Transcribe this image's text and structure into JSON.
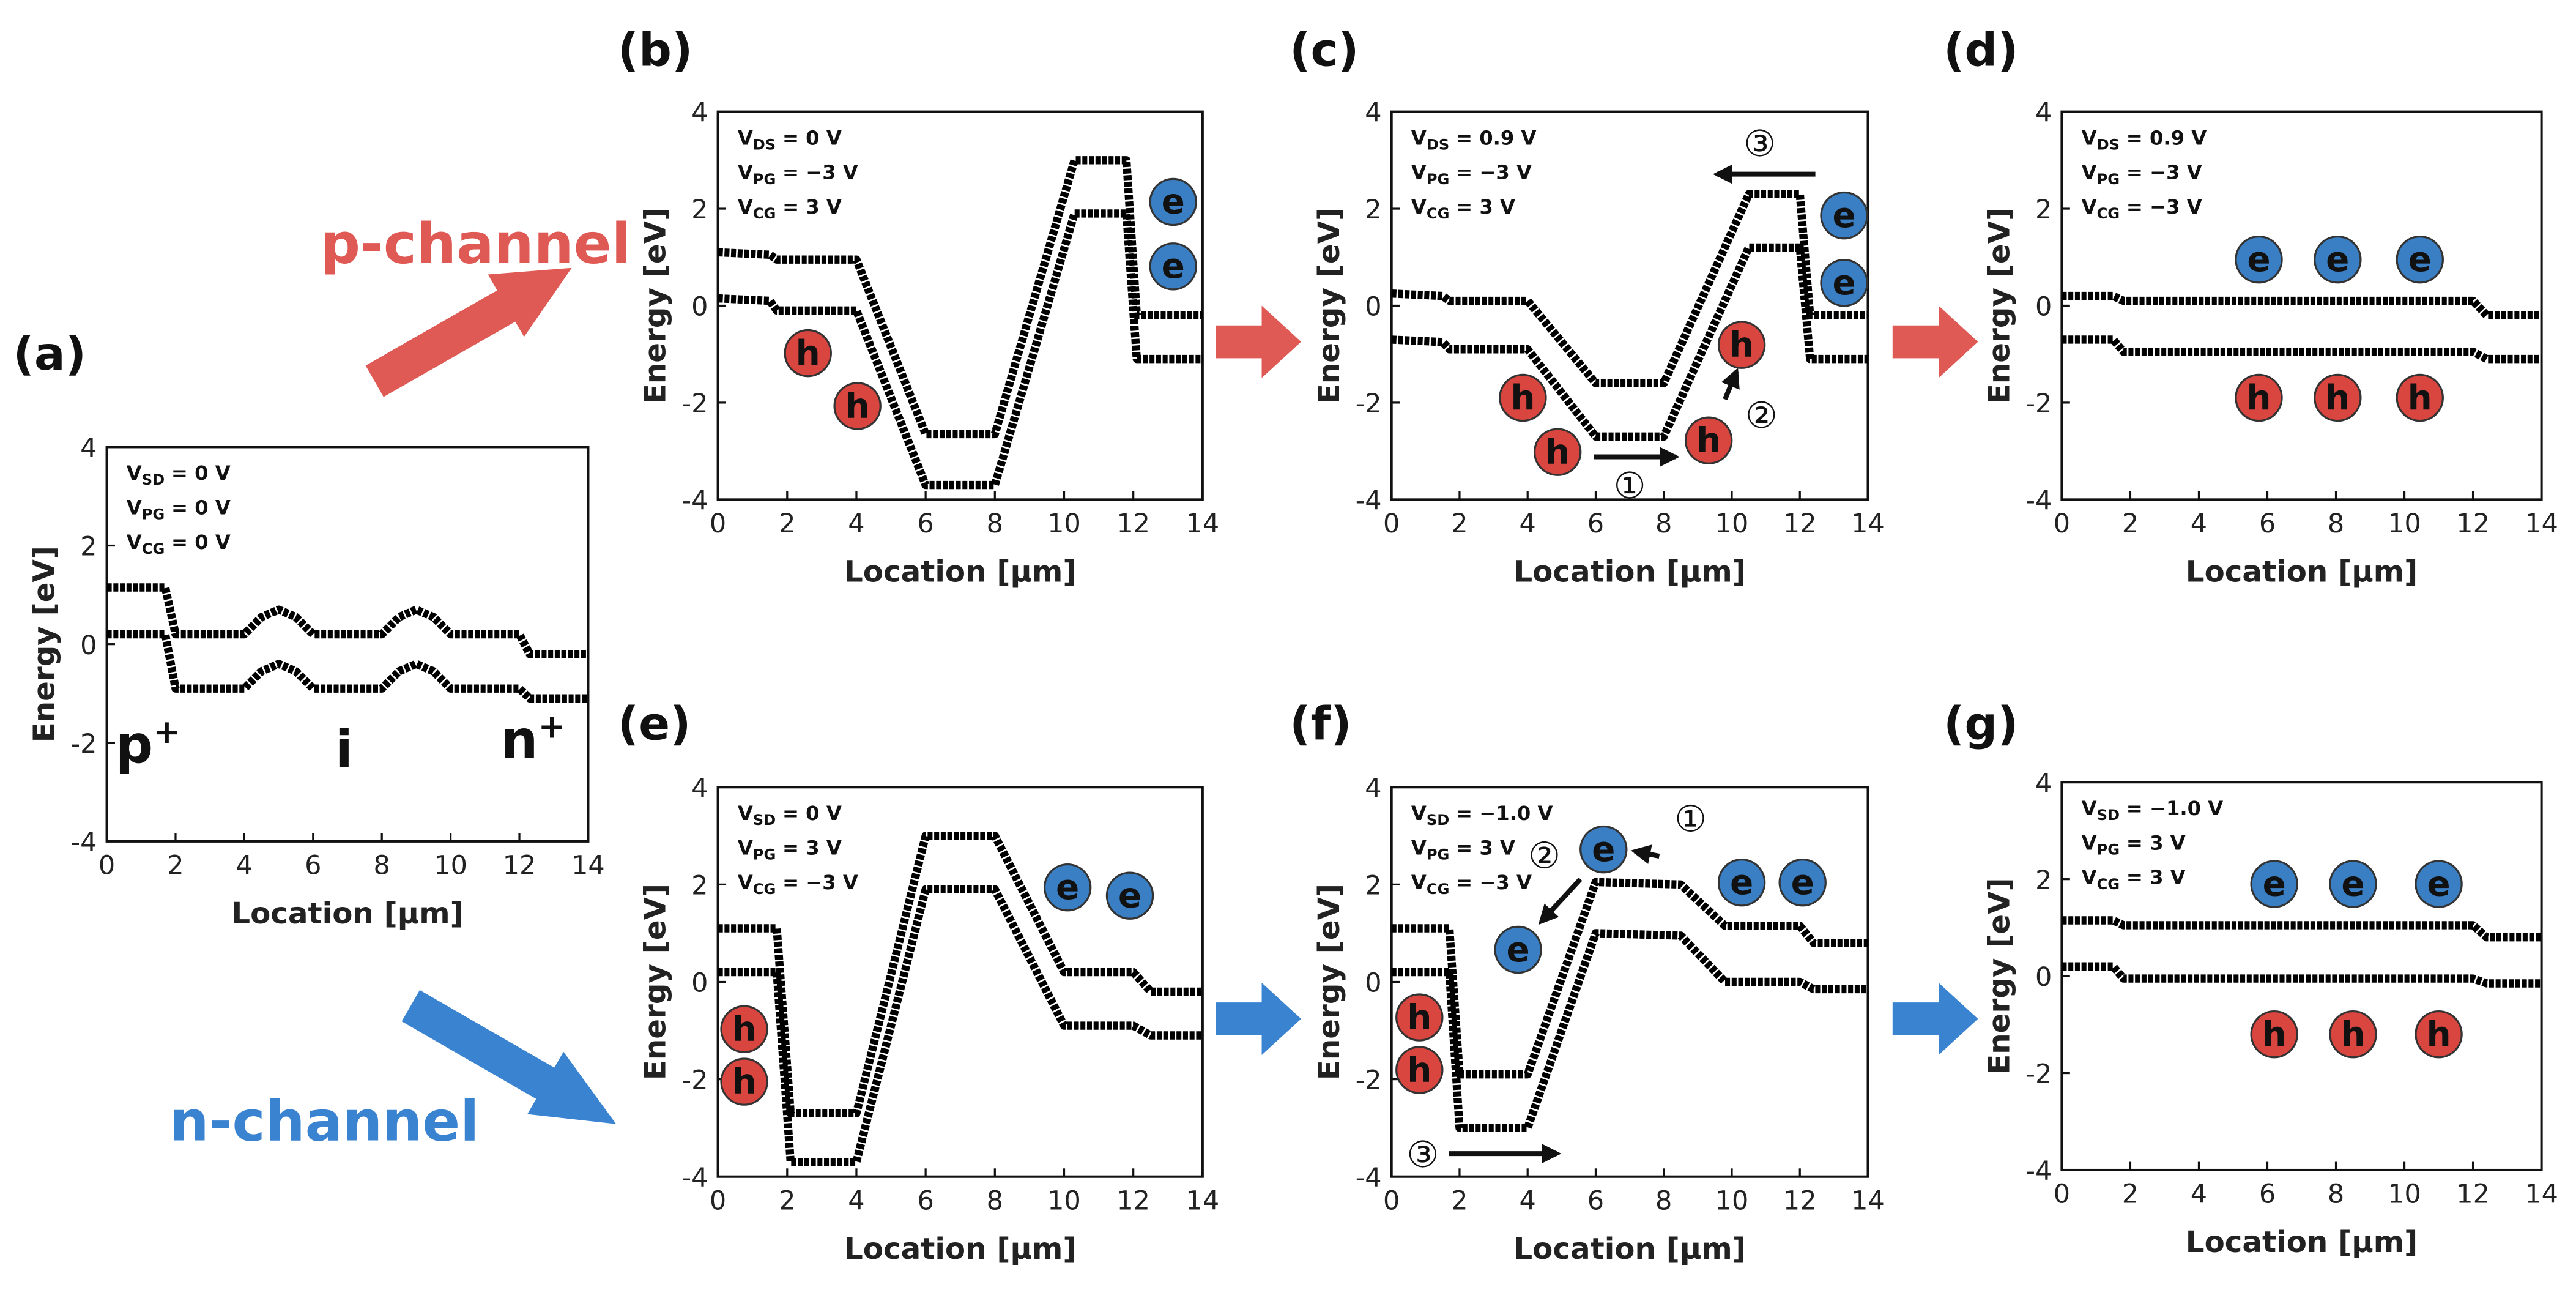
{
  "figure": {
    "p_channel": "p-channel",
    "n_channel": "n-channel"
  },
  "chart_data": [
    {
      "type": "line",
      "panel": "(a)",
      "xlabel": "Location [μm]",
      "ylabel": "Energy [eV]",
      "xlim": [
        0,
        14
      ],
      "ylim": [
        -4,
        4
      ],
      "xticks": [
        0,
        2,
        4,
        6,
        8,
        10,
        12,
        14
      ],
      "yticks": [
        -4,
        -2,
        0,
        2,
        4
      ],
      "x": [
        0,
        1.7,
        2,
        4,
        4.5,
        5,
        5.5,
        6,
        8,
        8.5,
        9,
        9.5,
        10,
        12,
        12.3,
        14
      ],
      "series": [
        {
          "color": "#000000",
          "values": [
            1.15,
            1.15,
            0.2,
            0.2,
            0.55,
            0.7,
            0.55,
            0.2,
            0.2,
            0.55,
            0.7,
            0.55,
            0.2,
            0.2,
            -0.2,
            -0.2
          ]
        },
        {
          "color": "#000000",
          "values": [
            0.2,
            0.2,
            -0.9,
            -0.9,
            -0.55,
            -0.4,
            -0.55,
            -0.9,
            -0.9,
            -0.55,
            -0.4,
            -0.55,
            -0.9,
            -0.9,
            -1.1,
            -1.1
          ]
        }
      ],
      "conditions": [
        {
          "name": "V",
          "sub": "SD",
          "text": "= 0 V"
        },
        {
          "name": "V",
          "sub": "PG",
          "text": "= 0 V"
        },
        {
          "name": "V",
          "sub": "CG",
          "text": "= 0 V"
        }
      ],
      "particles": [],
      "markers": [],
      "regions": [
        {
          "base": "p",
          "sup": "+"
        },
        {
          "base": "i",
          "sup": null
        },
        {
          "base": "n",
          "sup": "+"
        }
      ]
    },
    {
      "type": "line",
      "panel": "(b)",
      "xlabel": "Location [μm]",
      "ylabel": "Energy [eV]",
      "xlim": [
        0,
        14
      ],
      "ylim": [
        -4,
        4
      ],
      "xticks": [
        0,
        2,
        4,
        6,
        8,
        10,
        12,
        14
      ],
      "yticks": [
        -4,
        -2,
        0,
        2,
        4
      ],
      "x": [
        0,
        1.5,
        1.7,
        4,
        6,
        8,
        10.3,
        11.8,
        12.1,
        14
      ],
      "series": [
        {
          "color": "#000000",
          "values": [
            1.1,
            1.05,
            0.95,
            0.95,
            -2.65,
            -2.65,
            3.0,
            3.0,
            -0.2,
            -0.2
          ]
        },
        {
          "color": "#000000",
          "values": [
            0.15,
            0.1,
            -0.1,
            -0.1,
            -3.7,
            -3.7,
            1.9,
            1.9,
            -1.1,
            -1.1
          ]
        }
      ],
      "conditions": [
        {
          "name": "V",
          "sub": "DS",
          "text": "= 0 V"
        },
        {
          "name": "V",
          "sub": "PG",
          "text": "= −3 V"
        },
        {
          "name": "V",
          "sub": "CG",
          "text": "= 3 V"
        }
      ],
      "particles": [
        "e",
        "e",
        "h",
        "h"
      ],
      "markers": [],
      "regions": []
    },
    {
      "type": "line",
      "panel": "(c)",
      "xlabel": "Location [μm]",
      "ylabel": "Energy [eV]",
      "xlim": [
        0,
        14
      ],
      "ylim": [
        -4,
        4
      ],
      "xticks": [
        0,
        2,
        4,
        6,
        8,
        10,
        12,
        14
      ],
      "yticks": [
        -4,
        -2,
        0,
        2,
        4
      ],
      "x": [
        0,
        1.5,
        1.7,
        4,
        6,
        8,
        10.5,
        12,
        12.3,
        14
      ],
      "series": [
        {
          "color": "#000000",
          "values": [
            0.25,
            0.2,
            0.1,
            0.1,
            -1.6,
            -1.6,
            2.3,
            2.3,
            -0.2,
            -0.2
          ]
        },
        {
          "color": "#000000",
          "values": [
            -0.7,
            -0.75,
            -0.9,
            -0.9,
            -2.7,
            -2.7,
            1.2,
            1.2,
            -1.1,
            -1.1
          ]
        }
      ],
      "conditions": [
        {
          "name": "V",
          "sub": "DS",
          "text": "= 0.9 V"
        },
        {
          "name": "V",
          "sub": "PG",
          "text": "= −3 V"
        },
        {
          "name": "V",
          "sub": "CG",
          "text": "= 3 V"
        }
      ],
      "particles": [
        "e",
        "e",
        "h",
        "h",
        "h",
        "h"
      ],
      "markers": [
        "①",
        "②",
        "③"
      ],
      "regions": []
    },
    {
      "type": "line",
      "panel": "(d)",
      "xlabel": "Location [μm]",
      "ylabel": "Energy [eV]",
      "xlim": [
        0,
        14
      ],
      "ylim": [
        -4,
        4
      ],
      "xticks": [
        0,
        2,
        4,
        6,
        8,
        10,
        12,
        14
      ],
      "yticks": [
        -4,
        -2,
        0,
        2,
        4
      ],
      "x": [
        0,
        1.5,
        1.8,
        12,
        12.4,
        14
      ],
      "series": [
        {
          "color": "#000000",
          "values": [
            0.2,
            0.2,
            0.1,
            0.1,
            -0.2,
            -0.2
          ]
        },
        {
          "color": "#000000",
          "values": [
            -0.7,
            -0.7,
            -0.95,
            -0.95,
            -1.1,
            -1.1
          ]
        }
      ],
      "conditions": [
        {
          "name": "V",
          "sub": "DS",
          "text": "= 0.9 V"
        },
        {
          "name": "V",
          "sub": "PG",
          "text": "= −3 V"
        },
        {
          "name": "V",
          "sub": "CG",
          "text": "= −3 V"
        }
      ],
      "particles": [
        "e",
        "e",
        "e",
        "h",
        "h",
        "h"
      ],
      "markers": [],
      "regions": []
    },
    {
      "type": "line",
      "panel": "(e)",
      "xlabel": "Location [μm]",
      "ylabel": "Energy [eV]",
      "xlim": [
        0,
        14
      ],
      "ylim": [
        -4,
        4
      ],
      "xticks": [
        0,
        2,
        4,
        6,
        8,
        10,
        12,
        14
      ],
      "yticks": [
        -4,
        -2,
        0,
        2,
        4
      ],
      "x": [
        0,
        1.7,
        2.1,
        4,
        6,
        8,
        10,
        12,
        12.5,
        14
      ],
      "series": [
        {
          "color": "#000000",
          "values": [
            1.1,
            1.1,
            -2.7,
            -2.7,
            3.0,
            3.0,
            0.2,
            0.2,
            -0.2,
            -0.2
          ]
        },
        {
          "color": "#000000",
          "values": [
            0.2,
            0.2,
            -3.7,
            -3.7,
            1.9,
            1.9,
            -0.9,
            -0.9,
            -1.1,
            -1.1
          ]
        }
      ],
      "conditions": [
        {
          "name": "V",
          "sub": "SD",
          "text": "= 0 V"
        },
        {
          "name": "V",
          "sub": "PG",
          "text": "= 3 V"
        },
        {
          "name": "V",
          "sub": "CG",
          "text": "= −3 V"
        }
      ],
      "particles": [
        "e",
        "e",
        "h",
        "h"
      ],
      "markers": [],
      "regions": []
    },
    {
      "type": "line",
      "panel": "(f)",
      "xlabel": "Location [μm]",
      "ylabel": "Energy [eV]",
      "xlim": [
        0,
        14
      ],
      "ylim": [
        -4,
        4
      ],
      "xticks": [
        0,
        2,
        4,
        6,
        8,
        10,
        12,
        14
      ],
      "yticks": [
        -4,
        -2,
        0,
        2,
        4
      ],
      "x": [
        0,
        1.7,
        2.0,
        4,
        6,
        8.5,
        9.8,
        12,
        12.4,
        14
      ],
      "series": [
        {
          "color": "#000000",
          "values": [
            1.1,
            1.1,
            -1.9,
            -1.9,
            2.05,
            2.0,
            1.15,
            1.15,
            0.8,
            0.8
          ]
        },
        {
          "color": "#000000",
          "values": [
            0.2,
            0.2,
            -3.0,
            -3.0,
            1.0,
            0.95,
            0.0,
            0.0,
            -0.15,
            -0.15
          ]
        }
      ],
      "conditions": [
        {
          "name": "V",
          "sub": "SD",
          "text": "= −1.0 V"
        },
        {
          "name": "V",
          "sub": "PG",
          "text": "= 3 V"
        },
        {
          "name": "V",
          "sub": "CG",
          "text": "= −3 V"
        }
      ],
      "particles": [
        "e",
        "e",
        "e",
        "e",
        "h",
        "h"
      ],
      "markers": [
        "①",
        "②",
        "③"
      ],
      "regions": []
    },
    {
      "type": "line",
      "panel": "(g)",
      "xlabel": "Location [μm]",
      "ylabel": "Energy [eV]",
      "xlim": [
        0,
        14
      ],
      "ylim": [
        -4,
        4
      ],
      "xticks": [
        0,
        2,
        4,
        6,
        8,
        10,
        12,
        14
      ],
      "yticks": [
        -4,
        -2,
        0,
        2,
        4
      ],
      "x": [
        0,
        1.5,
        1.8,
        12,
        12.4,
        14
      ],
      "series": [
        {
          "color": "#000000",
          "values": [
            1.15,
            1.15,
            1.05,
            1.05,
            0.8,
            0.8
          ]
        },
        {
          "color": "#000000",
          "values": [
            0.2,
            0.2,
            -0.05,
            -0.05,
            -0.15,
            -0.15
          ]
        }
      ],
      "conditions": [
        {
          "name": "V",
          "sub": "SD",
          "text": "= −1.0 V"
        },
        {
          "name": "V",
          "sub": "PG",
          "text": "= 3 V"
        },
        {
          "name": "V",
          "sub": "CG",
          "text": "= 3 V"
        }
      ],
      "particles": [
        "e",
        "e",
        "e",
        "h",
        "h",
        "h"
      ],
      "markers": [],
      "regions": []
    }
  ]
}
